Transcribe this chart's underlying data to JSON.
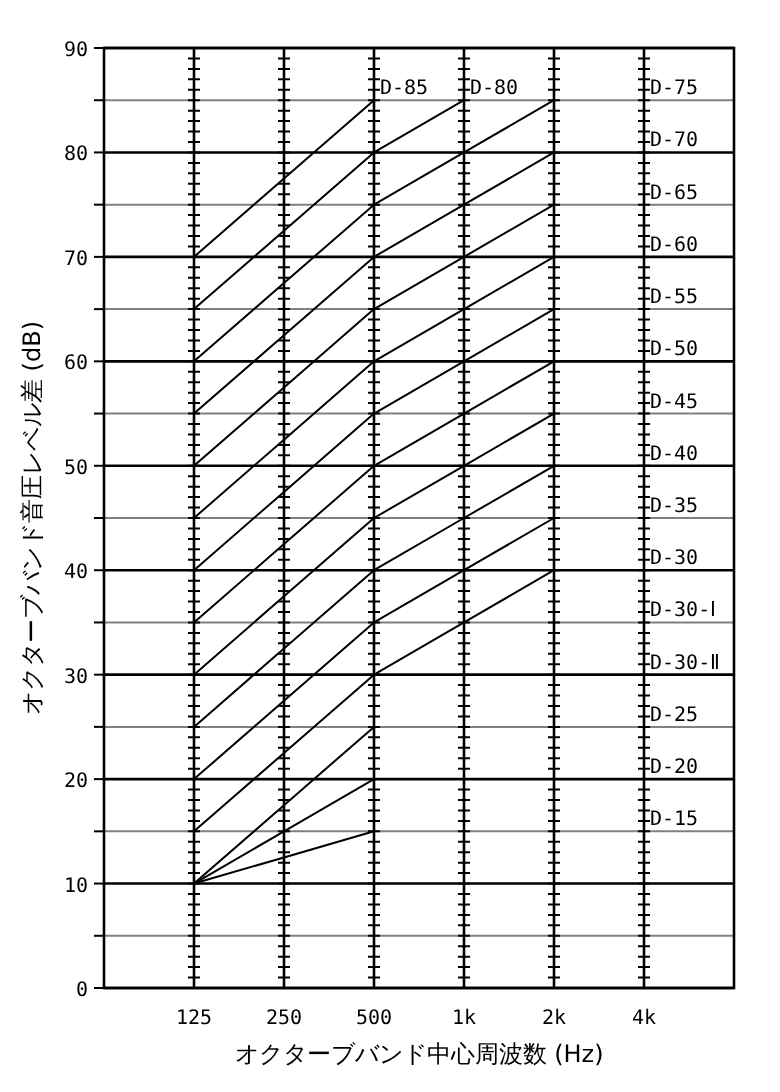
{
  "chart_data": {
    "type": "line",
    "xlabel": "オクターブバンド中心周波数 (Hz)",
    "ylabel": "オクターブバンド音圧レベル差 (dB)",
    "categories": [
      "125",
      "250",
      "500",
      "1k",
      "2k",
      "4k"
    ],
    "series": [
      {
        "color": "#000000",
        "values": [
          70,
          77.5,
          85,
          null,
          null,
          null
        ]
      },
      {
        "color": "#000000",
        "values": [
          65,
          72.5,
          80,
          85,
          null,
          null
        ]
      },
      {
        "color": "#000000",
        "values": [
          60,
          67.5,
          75,
          80,
          85,
          null
        ]
      },
      {
        "color": "#000000",
        "values": [
          55,
          62.5,
          70,
          75,
          80,
          null
        ]
      },
      {
        "color": "#000000",
        "values": [
          50,
          57.5,
          65,
          70,
          75,
          null
        ]
      },
      {
        "color": "#000000",
        "values": [
          45,
          52.5,
          60,
          65,
          70,
          null
        ]
      },
      {
        "color": "#000000",
        "values": [
          40,
          47.5,
          55,
          60,
          65,
          null
        ]
      },
      {
        "color": "#000000",
        "values": [
          35,
          42.5,
          50,
          55,
          60,
          null
        ]
      },
      {
        "color": "#000000",
        "values": [
          30,
          37.5,
          45,
          50,
          55,
          null
        ]
      },
      {
        "color": "#000000",
        "values": [
          25,
          32.5,
          40,
          45,
          50,
          null
        ]
      },
      {
        "color": "#000000",
        "values": [
          20,
          27.5,
          35,
          40,
          45,
          null
        ]
      },
      {
        "color": "#000000",
        "values": [
          15,
          22.5,
          30,
          35,
          40,
          null
        ]
      },
      {
        "color": "#000000",
        "values": [
          10,
          17.5,
          25,
          null,
          null,
          null
        ]
      },
      {
        "color": "#000000",
        "values": [
          10,
          15,
          20,
          null,
          null,
          null
        ]
      },
      {
        "color": "#000000",
        "values": [
          10,
          12.5,
          15,
          null,
          null,
          null
        ]
      }
    ],
    "ylim": [
      0,
      90
    ],
    "yticks": [
      0,
      {
        "value": 5,
        "label": null
      },
      10,
      {
        "value": 15,
        "label": null
      },
      20,
      {
        "value": 25,
        "label": null
      },
      30,
      {
        "value": 35,
        "label": null
      },
      40,
      {
        "value": 45,
        "label": null
      },
      50,
      {
        "value": 55,
        "label": null
      },
      60,
      {
        "value": 65,
        "label": null
      },
      70,
      {
        "value": 75,
        "label": null
      },
      80,
      {
        "value": 85,
        "label": null
      },
      90
    ],
    "grid": true,
    "marker": "none",
    "line_style": "solid",
    "annotations": [
      {
        "text": "D-85",
        "x": "500",
        "y": 85
      },
      {
        "text": "D-80",
        "x": "1k",
        "y": 85
      },
      "D-75",
      "D-70",
      "D-65",
      "D-60",
      "D-55",
      "D-50",
      "D-45",
      "D-40",
      "D-35",
      "D-30",
      "D-30-Ⅰ",
      "D-30-Ⅱ",
      "D-25",
      "D-20",
      "D-15"
    ]
  }
}
